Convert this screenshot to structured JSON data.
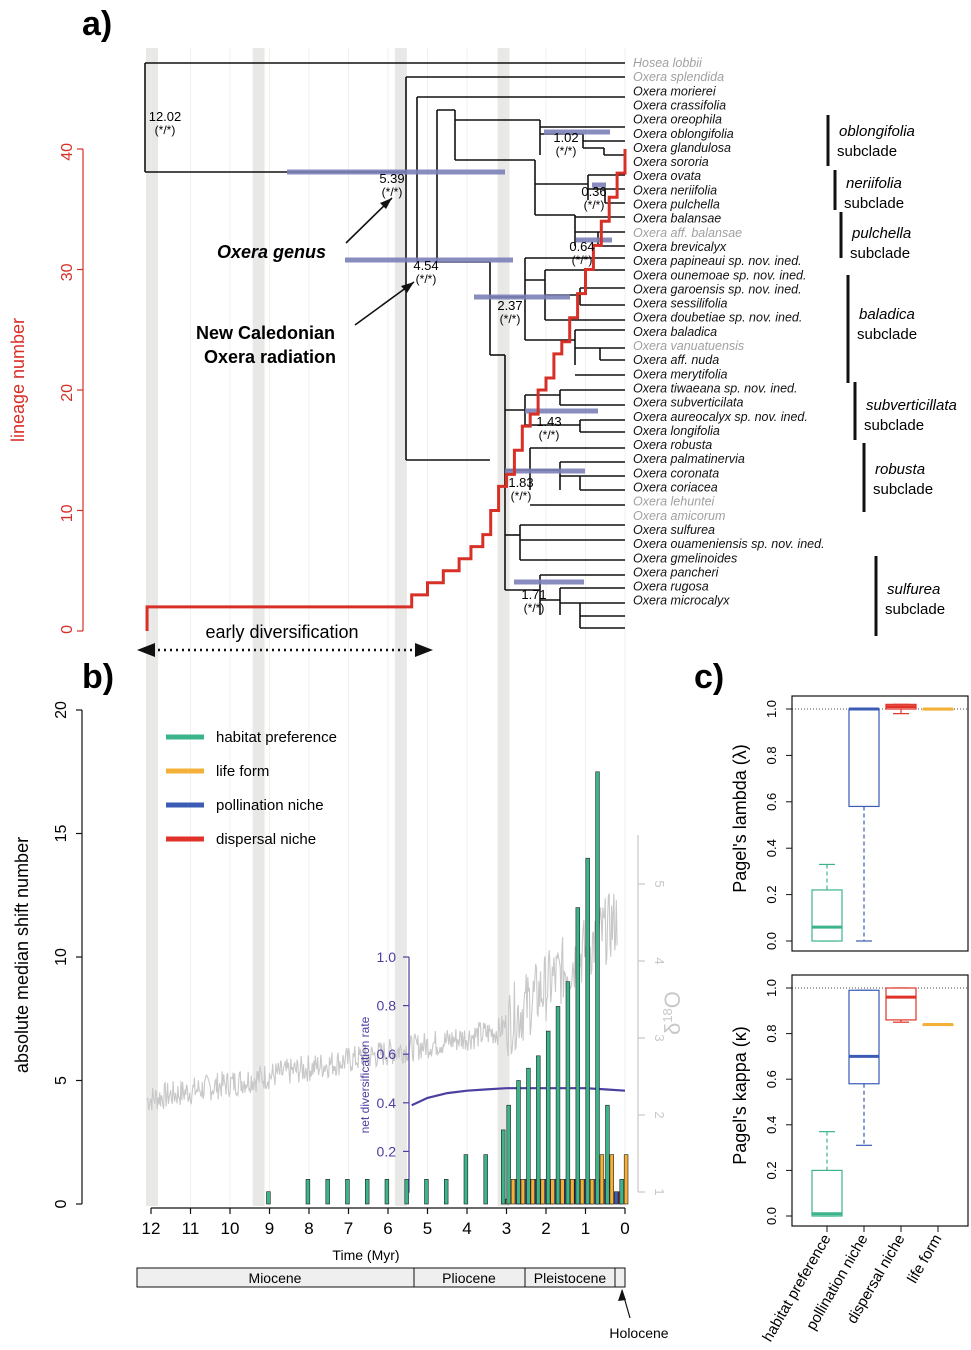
{
  "panel_labels": {
    "a": "a)",
    "b": "b)",
    "c": "c)"
  },
  "colors": {
    "lineage": "#d73027",
    "node_bar": "#7b7fb8",
    "habitat": "#3cb48a",
    "life_form": "#f3b13a",
    "pollination": "#3b5bb5",
    "dispersal": "#e03228",
    "diversification": "#4b3fa0",
    "d18o": "#c8c8c8",
    "epoch_band": "#e8e8e6",
    "grey_tip": "#a0a0a0"
  },
  "panel_a": {
    "ylabel": "lineage number",
    "yticks": [
      "0",
      "10",
      "20",
      "30",
      "40"
    ],
    "arrow_label": "early diversification",
    "callouts": [
      {
        "text": "Oxera genus"
      },
      {
        "text_lines": [
          "New Caledonian",
          "Oxera radiation"
        ]
      }
    ],
    "node_labels": [
      {
        "age": "12.02",
        "support": "(*/*)"
      },
      {
        "age": "5.39",
        "support": "(*/*)"
      },
      {
        "age": "4.54",
        "support": "(*/*)"
      },
      {
        "age": "1.02",
        "support": "(*/*)"
      },
      {
        "age": "0.36",
        "support": "(*/*)"
      },
      {
        "age": "0.64",
        "support": "(*/*)"
      },
      {
        "age": "2.37",
        "support": "(*/*)"
      },
      {
        "age": "1.43",
        "support": "(*/*)"
      },
      {
        "age": "1.83",
        "support": "(*/*)"
      },
      {
        "age": "1.71",
        "support": "(*/*)"
      }
    ],
    "tips": [
      {
        "name": "Hosea lobbii",
        "grey": true
      },
      {
        "name": "Oxera splendida",
        "grey": true
      },
      {
        "name": "Oxera morierei",
        "grey": false
      },
      {
        "name": "Oxera crassifolia",
        "grey": false
      },
      {
        "name": "Oxera oreophila",
        "grey": false
      },
      {
        "name": "Oxera oblongifolia",
        "grey": false
      },
      {
        "name": "Oxera glandulosa",
        "grey": false
      },
      {
        "name": "Oxera sororia",
        "grey": false
      },
      {
        "name": "Oxera ovata",
        "grey": false
      },
      {
        "name": "Oxera neriifolia",
        "grey": false
      },
      {
        "name": "Oxera pulchella",
        "grey": false
      },
      {
        "name": "Oxera balansae",
        "grey": false
      },
      {
        "name": "Oxera aff. balansae",
        "grey": true
      },
      {
        "name": "Oxera brevicalyx",
        "grey": false
      },
      {
        "name": "Oxera papineaui sp. nov. ined.",
        "grey": false
      },
      {
        "name": "Oxera ounemoae sp. nov. ined.",
        "grey": false
      },
      {
        "name": "Oxera garoensis sp. nov. ined.",
        "grey": false
      },
      {
        "name": "Oxera sessilifolia",
        "grey": false
      },
      {
        "name": "Oxera doubetiae sp. nov. ined.",
        "grey": false
      },
      {
        "name": "Oxera baladica",
        "grey": false
      },
      {
        "name": "Oxera vanuatuensis",
        "grey": true
      },
      {
        "name": "Oxera aff. nuda",
        "grey": false
      },
      {
        "name": "Oxera merytifolia",
        "grey": false
      },
      {
        "name": "Oxera tiwaeana sp. nov. ined.",
        "grey": false
      },
      {
        "name": "Oxera subverticilata",
        "grey": false
      },
      {
        "name": "Oxera aureocalyx sp. nov. ined.",
        "grey": false
      },
      {
        "name": "Oxera longifolia",
        "grey": false
      },
      {
        "name": "Oxera robusta",
        "grey": false
      },
      {
        "name": "Oxera palmatinervia",
        "grey": false
      },
      {
        "name": "Oxera coronata",
        "grey": false
      },
      {
        "name": "Oxera coriacea",
        "grey": false
      },
      {
        "name": "Oxera lehuntei",
        "grey": true
      },
      {
        "name": "Oxera amicorum",
        "grey": true
      },
      {
        "name": "Oxera sulfurea",
        "grey": false
      },
      {
        "name": "Oxera ouameniensis sp. nov. ined.",
        "grey": false
      },
      {
        "name": "Oxera gmelinoides",
        "grey": false
      },
      {
        "name": "Oxera pancheri",
        "grey": false
      },
      {
        "name": "Oxera rugosa",
        "grey": false
      },
      {
        "name": "Oxera microcalyx",
        "grey": false
      }
    ],
    "subclades": [
      {
        "italic": "oblongifolia",
        "plain": "subclade"
      },
      {
        "italic": "neriifolia",
        "plain": "subclade"
      },
      {
        "italic": "pulchella",
        "plain": "subclade"
      },
      {
        "italic": "baladica",
        "plain": "subclade"
      },
      {
        "italic": "subverticillata",
        "plain": "subclade"
      },
      {
        "italic": "robusta",
        "plain": "subclade"
      },
      {
        "italic": "sulfurea",
        "plain": "subclade"
      }
    ]
  },
  "panel_b": {
    "ylabel": "absolute median shift number",
    "yticks": [
      "0",
      "5",
      "10",
      "15",
      "20"
    ],
    "xlabel": "Time (Myr)",
    "xticks": [
      "12",
      "11",
      "10",
      "9",
      "8",
      "7",
      "6",
      "5",
      "4",
      "3",
      "2",
      "1",
      "0"
    ],
    "inset_ylabel": "net diversification rate",
    "inset_yticks": [
      "0.2",
      "0.4",
      "0.6",
      "0.8",
      "1.0"
    ],
    "right_ylabel_main": "δ",
    "right_ylabel_sup": "18",
    "right_ylabel_tail": "O",
    "right_yticks": [
      "1",
      "2",
      "3",
      "4",
      "5"
    ],
    "legend": [
      "habitat preference",
      "life form",
      "pollination niche",
      "dispersal niche"
    ],
    "epochs": [
      "Miocene",
      "Pliocene",
      "Pleistocene"
    ],
    "holocene_label": "Holocene"
  },
  "panel_c": {
    "top_ylabel": "Pagel's lambda (λ)",
    "bottom_ylabel": "Pagel's kappa (κ)",
    "yticks": [
      "0.0",
      "0.2",
      "0.4",
      "0.6",
      "0.8",
      "1.0"
    ],
    "categories": [
      "habitat preference",
      "pollination niche",
      "dispersal niche",
      "life form"
    ]
  },
  "chart_data": [
    {
      "type": "line",
      "title": "",
      "ylabel": "lineage number",
      "xlabel": "",
      "x_unit": "Myr before present",
      "ylim": [
        0,
        40
      ],
      "series": [
        {
          "name": "lineage number",
          "x": [
            12.1,
            5.4,
            5.0,
            4.6,
            4.2,
            3.9,
            3.6,
            3.4,
            3.2,
            3.0,
            2.8,
            2.6,
            2.4,
            2.2,
            2.0,
            1.8,
            1.6,
            1.4,
            1.2,
            1.0,
            0.8,
            0.6,
            0.4,
            0.2,
            0
          ],
          "values": [
            2,
            3,
            4,
            5,
            6,
            7,
            8,
            10,
            12,
            13,
            15,
            17,
            18,
            20,
            21,
            23,
            24,
            26,
            28,
            30,
            32,
            34,
            36,
            38,
            40
          ]
        }
      ]
    },
    {
      "type": "bar",
      "title": "",
      "xlabel": "Time (Myr)",
      "ylabel": "absolute median shift number",
      "ylim": [
        0,
        20
      ],
      "categories": [
        "9",
        "8",
        "7.5",
        "7",
        "6.5",
        "6",
        "5.5",
        "5",
        "4.5",
        "4",
        "3.5",
        "3",
        "2.75",
        "2.5",
        "2.25",
        "2",
        "1.75",
        "1.5",
        "1.25",
        "1",
        "0.75",
        "0.5",
        "0.25",
        "0"
      ],
      "series": [
        {
          "name": "habitat preference",
          "values": [
            0.5,
            1,
            1,
            1,
            1,
            1,
            1,
            1,
            1,
            2,
            2,
            3,
            4,
            5,
            5.5,
            6,
            7,
            8,
            9,
            12,
            14,
            17.5,
            4,
            1
          ]
        },
        {
          "name": "life form",
          "values": [
            0,
            0,
            0,
            0,
            0,
            0,
            0,
            0,
            0,
            0,
            0,
            0.2,
            1,
            1,
            1,
            1,
            1,
            1,
            1,
            1,
            1,
            2,
            2,
            2
          ]
        },
        {
          "name": "pollination niche",
          "values": [
            0,
            0,
            0,
            0,
            0,
            0,
            0,
            0,
            0,
            0,
            0,
            0,
            1,
            1,
            1,
            1,
            1,
            1,
            1,
            1,
            1,
            1,
            0.5,
            0
          ]
        },
        {
          "name": "dispersal niche",
          "values": [
            0,
            0,
            0,
            0,
            0,
            0,
            0,
            0,
            0,
            0,
            0,
            0,
            1,
            1,
            1,
            1,
            1,
            1,
            1,
            1,
            1,
            1,
            0.5,
            0
          ]
        }
      ]
    },
    {
      "type": "line",
      "title": "",
      "ylabel": "net diversification rate",
      "ylim": [
        0,
        1.0
      ],
      "x": [
        5.4,
        5.0,
        4.5,
        4.0,
        3.5,
        3.0,
        2.5,
        2.0,
        1.5,
        1.0,
        0.5,
        0
      ],
      "series": [
        {
          "name": "net diversification rate",
          "values": [
            0.39,
            0.42,
            0.44,
            0.45,
            0.455,
            0.46,
            0.46,
            0.46,
            0.46,
            0.46,
            0.455,
            0.45
          ]
        }
      ]
    },
    {
      "type": "box",
      "title": "",
      "ylabel": "Pagel's lambda (λ)",
      "ylim": [
        0,
        1
      ],
      "categories": [
        "habitat preference",
        "pollination niche",
        "dispersal niche",
        "life form"
      ],
      "boxes": [
        {
          "min": 0,
          "q1": 0.0,
          "median": 0.06,
          "q3": 0.22,
          "max": 0.33
        },
        {
          "min": 0,
          "q1": 0.58,
          "median": 1.0,
          "q3": 1.0,
          "max": 1.0
        },
        {
          "min": 0.98,
          "q1": 1.0,
          "median": 1.01,
          "q3": 1.02,
          "max": 1.02
        },
        {
          "min": 1.0,
          "q1": 1.0,
          "median": 1.0,
          "q3": 1.0,
          "max": 1.0
        }
      ]
    },
    {
      "type": "box",
      "title": "",
      "ylabel": "Pagel's kappa (κ)",
      "ylim": [
        0,
        1
      ],
      "categories": [
        "habitat preference",
        "pollination niche",
        "dispersal niche",
        "life form"
      ],
      "boxes": [
        {
          "min": 0,
          "q1": 0.0,
          "median": 0.01,
          "q3": 0.2,
          "max": 0.37
        },
        {
          "min": 0.31,
          "q1": 0.58,
          "median": 0.7,
          "q3": 0.99,
          "max": 0.99
        },
        {
          "min": 0.85,
          "q1": 0.86,
          "median": 0.96,
          "q3": 1.0,
          "max": 1.0
        },
        {
          "min": 0.84,
          "q1": 0.84,
          "median": 0.84,
          "q3": 0.84,
          "max": 0.84
        }
      ]
    }
  ]
}
